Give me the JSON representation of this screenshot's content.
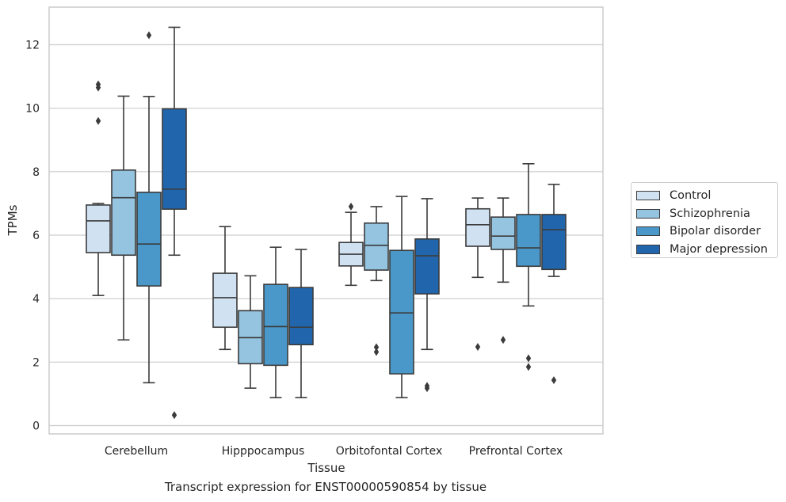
{
  "chart_data": {
    "type": "box",
    "caption": "Transcript expression for ENST00000590854 by tissue",
    "xlabel": "Tissue",
    "ylabel": "TPMs",
    "ylim": [
      -0.25,
      13.2
    ],
    "yticks": [
      0,
      2,
      4,
      6,
      8,
      10,
      12
    ],
    "grid": "horizontal",
    "legend_position": "outside-right",
    "categories": [
      "Cerebellum",
      "Hipppocampus",
      "Orbitofontal Cortex",
      "Prefrontal Cortex"
    ],
    "series": [
      {
        "name": "Control",
        "color": "#d0e1f2",
        "boxes": [
          {
            "whisker_low": 4.1,
            "q1": 5.45,
            "median": 6.45,
            "q3": 6.95,
            "whisker_high": 7.0,
            "outliers": [
              10.75,
              10.65,
              9.6
            ]
          },
          {
            "whisker_low": 2.4,
            "q1": 3.1,
            "median": 4.03,
            "q3": 4.8,
            "whisker_high": 6.27,
            "outliers": []
          },
          {
            "whisker_low": 4.42,
            "q1": 5.03,
            "median": 5.4,
            "q3": 5.77,
            "whisker_high": 6.72,
            "outliers": [
              6.9
            ]
          },
          {
            "whisker_low": 4.67,
            "q1": 5.65,
            "median": 6.33,
            "q3": 6.83,
            "whisker_high": 7.17,
            "outliers": [
              2.48
            ]
          }
        ]
      },
      {
        "name": "Schizophrenia",
        "color": "#94c4df",
        "boxes": [
          {
            "whisker_low": 2.7,
            "q1": 5.37,
            "median": 7.18,
            "q3": 8.05,
            "whisker_high": 10.38,
            "outliers": []
          },
          {
            "whisker_low": 1.18,
            "q1": 1.95,
            "median": 2.77,
            "q3": 3.62,
            "whisker_high": 4.72,
            "outliers": []
          },
          {
            "whisker_low": 4.57,
            "q1": 4.9,
            "median": 5.68,
            "q3": 6.38,
            "whisker_high": 6.9,
            "outliers": [
              2.47,
              2.32
            ]
          },
          {
            "whisker_low": 4.52,
            "q1": 5.55,
            "median": 5.97,
            "q3": 6.57,
            "whisker_high": 7.17,
            "outliers": [
              2.7
            ]
          }
        ]
      },
      {
        "name": "Bipolar disorder",
        "color": "#4a98c9",
        "boxes": [
          {
            "whisker_low": 1.35,
            "q1": 4.4,
            "median": 5.72,
            "q3": 7.35,
            "whisker_high": 10.37,
            "outliers": [
              12.3
            ]
          },
          {
            "whisker_low": 0.88,
            "q1": 1.9,
            "median": 3.12,
            "q3": 4.45,
            "whisker_high": 5.62,
            "outliers": []
          },
          {
            "whisker_low": 0.88,
            "q1": 1.63,
            "median": 3.55,
            "q3": 5.52,
            "whisker_high": 7.22,
            "outliers": []
          },
          {
            "whisker_low": 3.77,
            "q1": 5.02,
            "median": 5.6,
            "q3": 6.65,
            "whisker_high": 8.25,
            "outliers": [
              2.12,
              1.85
            ]
          }
        ]
      },
      {
        "name": "Major depression",
        "color": "#2166ac",
        "boxes": [
          {
            "whisker_low": 5.37,
            "q1": 6.82,
            "median": 7.45,
            "q3": 9.98,
            "whisker_high": 12.55,
            "outliers": [
              0.33
            ]
          },
          {
            "whisker_low": 0.88,
            "q1": 2.55,
            "median": 3.1,
            "q3": 4.35,
            "whisker_high": 5.55,
            "outliers": []
          },
          {
            "whisker_low": 2.4,
            "q1": 4.15,
            "median": 5.35,
            "q3": 5.88,
            "whisker_high": 7.15,
            "outliers": [
              1.25,
              1.18
            ]
          },
          {
            "whisker_low": 4.7,
            "q1": 4.92,
            "median": 6.17,
            "q3": 6.65,
            "whisker_high": 7.6,
            "outliers": [
              1.43
            ]
          }
        ]
      }
    ]
  }
}
